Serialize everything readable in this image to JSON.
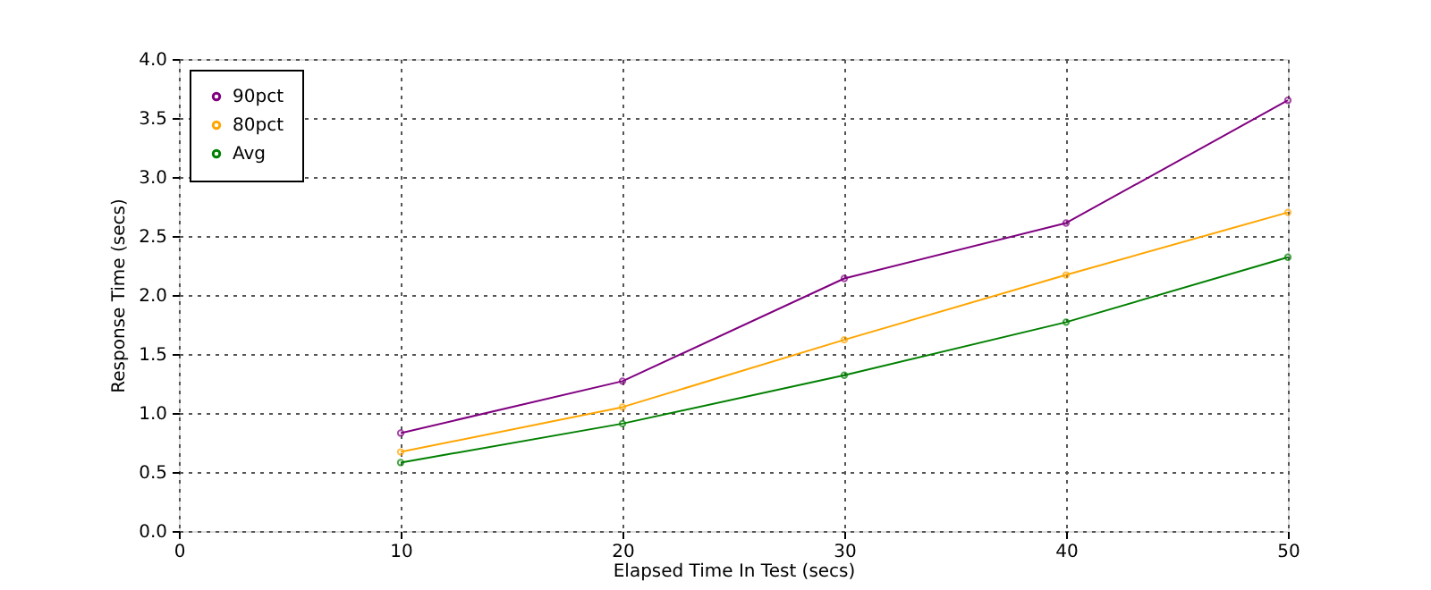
{
  "chart_data": {
    "type": "line",
    "xlabel": "Elapsed Time In Test (secs)",
    "ylabel": "Response Time (secs)",
    "x": [
      10,
      20,
      30,
      40,
      50
    ],
    "series": [
      {
        "name": "90pct",
        "color": "#800080",
        "values": [
          0.83,
          1.27,
          2.14,
          2.61,
          3.65
        ]
      },
      {
        "name": "80pct",
        "color": "#ffa500",
        "values": [
          0.67,
          1.05,
          1.62,
          2.17,
          2.7
        ]
      },
      {
        "name": "Avg",
        "color": "#008000",
        "values": [
          0.58,
          0.91,
          1.32,
          1.77,
          2.32
        ]
      }
    ],
    "xlim": [
      0,
      50
    ],
    "xticks": [
      0,
      10,
      20,
      30,
      40,
      50
    ],
    "ylim": [
      0,
      4.0
    ],
    "yticks": [
      {
        "value": 0,
        "label": "0.0"
      },
      {
        "value": 0.5,
        "label": "0.5"
      },
      {
        "value": 1,
        "label": "1.0"
      },
      {
        "value": 1.5,
        "label": "1.5"
      },
      {
        "value": 2,
        "label": "2.0"
      },
      {
        "value": 2.5,
        "label": "2.5"
      },
      {
        "value": 3,
        "label": "3.0"
      },
      {
        "value": 3.5,
        "label": "3.5"
      },
      {
        "value": 4,
        "label": "4.0"
      }
    ],
    "grid": true,
    "legend": "top left",
    "marker": "circle",
    "line_style": "solid"
  }
}
